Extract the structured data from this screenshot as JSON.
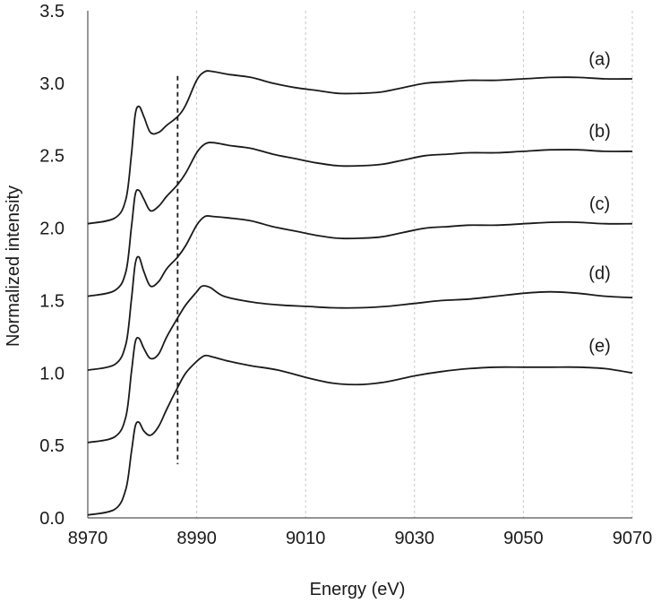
{
  "chart_data": {
    "type": "line",
    "title": "",
    "xlabel": "Energy (eV)",
    "ylabel": "Normalized intensity",
    "xlim": [
      8970,
      9070
    ],
    "ylim": [
      0.0,
      3.5
    ],
    "xticks": [
      8970,
      8990,
      9010,
      9030,
      9050,
      9070
    ],
    "yticks": [
      "0.0",
      "0.5",
      "1.0",
      "1.5",
      "2.0",
      "2.5",
      "3.0",
      "3.5"
    ],
    "grid": "vertical-dashed",
    "legend": "none",
    "reference_line": {
      "x": 8986.5,
      "y_range": [
        0.37,
        3.05
      ],
      "style": "dashed"
    },
    "series": [
      {
        "label": "(a)",
        "label_position": [
          9064,
          3.17
        ],
        "x": [
          8970,
          8975,
          8977,
          8978,
          8978.7,
          8979.4,
          8980.3,
          8981.5,
          8983,
          8984.5,
          8986.5,
          8988,
          8990,
          8991.5,
          8993,
          8996,
          9000,
          9004,
          9008,
          9012,
          9016,
          9020,
          9024,
          9028,
          9032,
          9036,
          9040,
          9045,
          9050,
          9055,
          9060,
          9065,
          9070
        ],
        "y": [
          2.03,
          2.07,
          2.2,
          2.5,
          2.78,
          2.84,
          2.77,
          2.66,
          2.66,
          2.71,
          2.77,
          2.85,
          3.02,
          3.08,
          3.08,
          3.06,
          3.04,
          3.0,
          2.97,
          2.95,
          2.93,
          2.93,
          2.94,
          2.97,
          3.0,
          3.01,
          3.02,
          3.02,
          3.03,
          3.04,
          3.04,
          3.03,
          3.03
        ]
      },
      {
        "label": "(b)",
        "label_position": [
          9064,
          2.67
        ],
        "x": [
          8970,
          8975,
          8977,
          8978,
          8978.7,
          8979.4,
          8980.3,
          8981.5,
          8983,
          8984.5,
          8986.5,
          8988,
          8990,
          8991.5,
          8993,
          8996,
          9000,
          9004,
          9008,
          9012,
          9016,
          9020,
          9024,
          9028,
          9032,
          9036,
          9040,
          9045,
          9050,
          9055,
          9060,
          9065,
          9070
        ],
        "y": [
          1.53,
          1.57,
          1.7,
          2.0,
          2.23,
          2.26,
          2.2,
          2.12,
          2.15,
          2.22,
          2.3,
          2.38,
          2.52,
          2.58,
          2.59,
          2.57,
          2.55,
          2.51,
          2.48,
          2.45,
          2.43,
          2.43,
          2.44,
          2.47,
          2.5,
          2.51,
          2.52,
          2.52,
          2.53,
          2.54,
          2.54,
          2.53,
          2.53
        ]
      },
      {
        "label": "(c)",
        "label_position": [
          9064,
          2.17
        ],
        "x": [
          8970,
          8975,
          8977,
          8978,
          8978.7,
          8979.4,
          8980.3,
          8981.5,
          8983,
          8984.5,
          8986.5,
          8988,
          8990,
          8991.5,
          8993,
          8996,
          9000,
          9004,
          9008,
          9012,
          9016,
          9020,
          9024,
          9028,
          9032,
          9036,
          9040,
          9045,
          9050,
          9055,
          9060,
          9065,
          9070
        ],
        "y": [
          1.02,
          1.06,
          1.2,
          1.5,
          1.75,
          1.8,
          1.7,
          1.6,
          1.63,
          1.72,
          1.8,
          1.88,
          2.02,
          2.08,
          2.08,
          2.07,
          2.05,
          2.01,
          1.98,
          1.95,
          1.93,
          1.93,
          1.94,
          1.97,
          2.0,
          2.01,
          2.02,
          2.02,
          2.03,
          2.04,
          2.04,
          2.03,
          2.03
        ]
      },
      {
        "label": "(d)",
        "label_position": [
          9064,
          1.69
        ],
        "x": [
          8970,
          8975,
          8977,
          8978,
          8978.7,
          8979.4,
          8980.3,
          8981.5,
          8983,
          8984.5,
          8986.5,
          8988,
          8990,
          8991,
          8992.5,
          8995,
          9000,
          9005,
          9010,
          9015,
          9020,
          9025,
          9030,
          9035,
          9040,
          9045,
          9050,
          9055,
          9060,
          9065,
          9070
        ],
        "y": [
          0.52,
          0.56,
          0.7,
          1.0,
          1.21,
          1.24,
          1.17,
          1.1,
          1.13,
          1.25,
          1.38,
          1.47,
          1.56,
          1.6,
          1.59,
          1.53,
          1.49,
          1.47,
          1.46,
          1.45,
          1.45,
          1.46,
          1.48,
          1.5,
          1.51,
          1.53,
          1.55,
          1.56,
          1.55,
          1.53,
          1.52
        ]
      },
      {
        "label": "(e)",
        "label_position": [
          9064,
          1.19
        ],
        "x": [
          8970,
          8975,
          8977,
          8978,
          8978.7,
          8979.4,
          8980.3,
          8981.5,
          8983,
          8984.5,
          8986.5,
          8988,
          8990,
          8991.5,
          8993,
          8996,
          9000,
          9005,
          9010,
          9015,
          9020,
          9025,
          9030,
          9035,
          9040,
          9045,
          9050,
          9055,
          9060,
          9065,
          9070
        ],
        "y": [
          0.02,
          0.06,
          0.2,
          0.45,
          0.63,
          0.66,
          0.6,
          0.57,
          0.63,
          0.75,
          0.9,
          1.0,
          1.08,
          1.12,
          1.11,
          1.08,
          1.05,
          1.02,
          0.97,
          0.93,
          0.92,
          0.94,
          0.98,
          1.01,
          1.03,
          1.04,
          1.04,
          1.04,
          1.04,
          1.03,
          1.0
        ]
      }
    ]
  }
}
